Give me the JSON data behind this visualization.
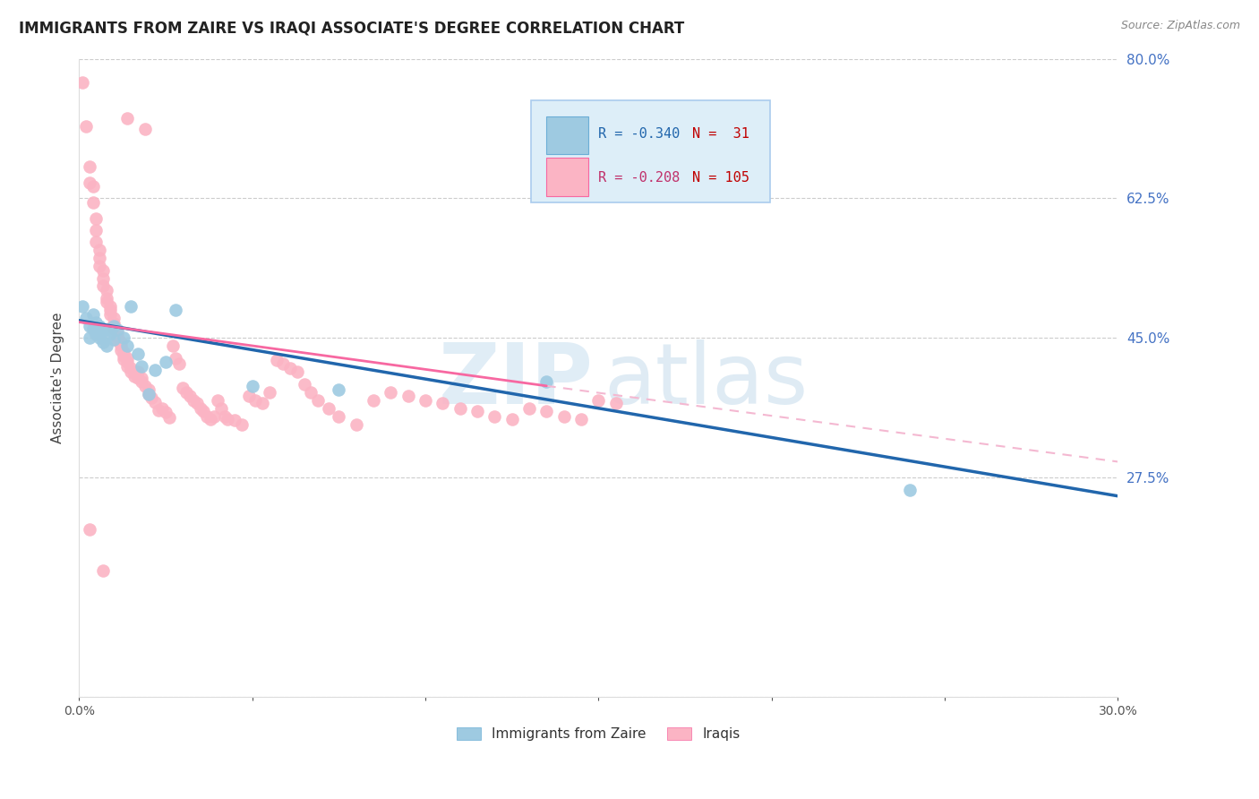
{
  "title": "IMMIGRANTS FROM ZAIRE VS IRAQI ASSOCIATE'S DEGREE CORRELATION CHART",
  "source": "Source: ZipAtlas.com",
  "ylabel": "Associate's Degree",
  "xlim": [
    0.0,
    0.3
  ],
  "ylim": [
    0.0,
    0.8
  ],
  "xticks": [
    0.0,
    0.05,
    0.1,
    0.15,
    0.2,
    0.25,
    0.3
  ],
  "xticklabels": [
    "0.0%",
    "",
    "",
    "",
    "",
    "",
    "30.0%"
  ],
  "yticks": [
    0.0,
    0.275,
    0.45,
    0.625,
    0.8
  ],
  "yticklabels": [
    "",
    "27.5%",
    "45.0%",
    "62.5%",
    "80.0%"
  ],
  "grid_color": "#cccccc",
  "background_color": "#ffffff",
  "watermark_zip": "ZIP",
  "watermark_atlas": "atlas",
  "blue_color": "#9ecae1",
  "pink_color": "#fbb4c4",
  "blue_line_color": "#2166ac",
  "pink_line_color": "#f768a1",
  "pink_dash_color": "#f4b8d1",
  "blue_scatter": [
    [
      0.001,
      0.49
    ],
    [
      0.002,
      0.475
    ],
    [
      0.003,
      0.465
    ],
    [
      0.003,
      0.45
    ],
    [
      0.004,
      0.48
    ],
    [
      0.004,
      0.462
    ],
    [
      0.005,
      0.47
    ],
    [
      0.005,
      0.455
    ],
    [
      0.006,
      0.465
    ],
    [
      0.006,
      0.45
    ],
    [
      0.007,
      0.46
    ],
    [
      0.007,
      0.445
    ],
    [
      0.008,
      0.46
    ],
    [
      0.008,
      0.44
    ],
    [
      0.009,
      0.455
    ],
    [
      0.01,
      0.465
    ],
    [
      0.01,
      0.448
    ],
    [
      0.011,
      0.46
    ],
    [
      0.013,
      0.45
    ],
    [
      0.014,
      0.44
    ],
    [
      0.015,
      0.49
    ],
    [
      0.017,
      0.43
    ],
    [
      0.018,
      0.415
    ],
    [
      0.02,
      0.38
    ],
    [
      0.022,
      0.41
    ],
    [
      0.025,
      0.42
    ],
    [
      0.028,
      0.485
    ],
    [
      0.05,
      0.39
    ],
    [
      0.075,
      0.385
    ],
    [
      0.135,
      0.395
    ],
    [
      0.24,
      0.26
    ]
  ],
  "pink_scatter": [
    [
      0.001,
      0.77
    ],
    [
      0.002,
      0.715
    ],
    [
      0.003,
      0.665
    ],
    [
      0.003,
      0.645
    ],
    [
      0.004,
      0.64
    ],
    [
      0.004,
      0.62
    ],
    [
      0.005,
      0.6
    ],
    [
      0.005,
      0.585
    ],
    [
      0.005,
      0.57
    ],
    [
      0.006,
      0.56
    ],
    [
      0.006,
      0.55
    ],
    [
      0.006,
      0.54
    ],
    [
      0.007,
      0.535
    ],
    [
      0.007,
      0.525
    ],
    [
      0.007,
      0.515
    ],
    [
      0.008,
      0.51
    ],
    [
      0.008,
      0.5
    ],
    [
      0.008,
      0.495
    ],
    [
      0.009,
      0.49
    ],
    [
      0.009,
      0.485
    ],
    [
      0.009,
      0.48
    ],
    [
      0.01,
      0.475
    ],
    [
      0.01,
      0.468
    ],
    [
      0.01,
      0.462
    ],
    [
      0.011,
      0.457
    ],
    [
      0.011,
      0.452
    ],
    [
      0.011,
      0.447
    ],
    [
      0.012,
      0.445
    ],
    [
      0.012,
      0.44
    ],
    [
      0.012,
      0.435
    ],
    [
      0.013,
      0.432
    ],
    [
      0.013,
      0.428
    ],
    [
      0.013,
      0.424
    ],
    [
      0.014,
      0.425
    ],
    [
      0.014,
      0.42
    ],
    [
      0.014,
      0.415
    ],
    [
      0.015,
      0.412
    ],
    [
      0.015,
      0.408
    ],
    [
      0.016,
      0.408
    ],
    [
      0.016,
      0.402
    ],
    [
      0.017,
      0.408
    ],
    [
      0.017,
      0.4
    ],
    [
      0.018,
      0.4
    ],
    [
      0.018,
      0.395
    ],
    [
      0.019,
      0.39
    ],
    [
      0.02,
      0.385
    ],
    [
      0.02,
      0.38
    ],
    [
      0.021,
      0.375
    ],
    [
      0.022,
      0.37
    ],
    [
      0.023,
      0.36
    ],
    [
      0.024,
      0.362
    ],
    [
      0.025,
      0.357
    ],
    [
      0.026,
      0.35
    ],
    [
      0.027,
      0.44
    ],
    [
      0.028,
      0.425
    ],
    [
      0.029,
      0.418
    ],
    [
      0.03,
      0.388
    ],
    [
      0.031,
      0.382
    ],
    [
      0.032,
      0.378
    ],
    [
      0.033,
      0.372
    ],
    [
      0.034,
      0.368
    ],
    [
      0.035,
      0.362
    ],
    [
      0.036,
      0.358
    ],
    [
      0.037,
      0.352
    ],
    [
      0.038,
      0.348
    ],
    [
      0.039,
      0.352
    ],
    [
      0.04,
      0.372
    ],
    [
      0.041,
      0.362
    ],
    [
      0.042,
      0.352
    ],
    [
      0.043,
      0.348
    ],
    [
      0.045,
      0.347
    ],
    [
      0.047,
      0.342
    ],
    [
      0.049,
      0.378
    ],
    [
      0.051,
      0.372
    ],
    [
      0.053,
      0.368
    ],
    [
      0.055,
      0.382
    ],
    [
      0.057,
      0.422
    ],
    [
      0.059,
      0.418
    ],
    [
      0.061,
      0.412
    ],
    [
      0.063,
      0.408
    ],
    [
      0.065,
      0.392
    ],
    [
      0.067,
      0.382
    ],
    [
      0.069,
      0.372
    ],
    [
      0.072,
      0.362
    ],
    [
      0.075,
      0.352
    ],
    [
      0.08,
      0.342
    ],
    [
      0.085,
      0.372
    ],
    [
      0.09,
      0.382
    ],
    [
      0.095,
      0.378
    ],
    [
      0.1,
      0.372
    ],
    [
      0.105,
      0.368
    ],
    [
      0.11,
      0.362
    ],
    [
      0.115,
      0.358
    ],
    [
      0.12,
      0.352
    ],
    [
      0.125,
      0.348
    ],
    [
      0.13,
      0.362
    ],
    [
      0.135,
      0.358
    ],
    [
      0.14,
      0.352
    ],
    [
      0.145,
      0.348
    ],
    [
      0.15,
      0.372
    ],
    [
      0.155,
      0.368
    ],
    [
      0.003,
      0.21
    ],
    [
      0.007,
      0.158
    ],
    [
      0.014,
      0.725
    ],
    [
      0.019,
      0.712
    ]
  ],
  "blue_line": {
    "x0": 0.0,
    "x1": 0.3,
    "y0": 0.472,
    "y1": 0.252
  },
  "pink_solid_line": {
    "x0": 0.0,
    "x1": 0.135,
    "y0": 0.47,
    "y1": 0.39
  },
  "pink_dash_line": {
    "x0": 0.135,
    "x1": 0.3,
    "y0": 0.39,
    "y1": 0.295
  },
  "title_fontsize": 12,
  "label_fontsize": 11,
  "tick_fontsize": 10,
  "right_tick_color": "#4472c4",
  "legend_blue_text_r": "R = -0.340",
  "legend_blue_text_n": "N =  31",
  "legend_pink_text_r": "R = -0.208",
  "legend_pink_text_n": "N = 105"
}
